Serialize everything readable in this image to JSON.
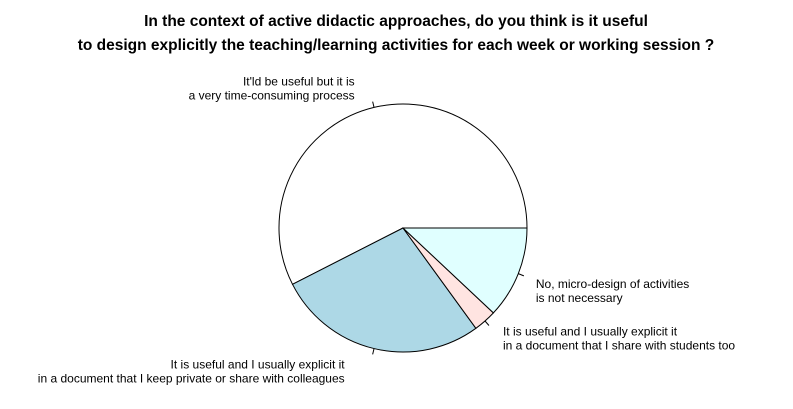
{
  "chart_data": {
    "type": "pie",
    "title": [
      "In the context of active didactic approaches, do you think is it useful",
      "to design explicitly the teaching/learning activities for each week or working session ?"
    ],
    "start_angle_deg": 0,
    "direction": "counterclockwise",
    "slices": [
      {
        "label": [
          "It'ld be useful but it is",
          "a very time-consuming process"
        ],
        "value": 57.5,
        "color": "#ffffff"
      },
      {
        "label": [
          "It is useful and I usually explicit it",
          "in a document that I keep private or share with colleagues"
        ],
        "value": 27.5,
        "color": "#add8e6"
      },
      {
        "label": [
          "It is useful and I usually explicit it",
          "in a document that I share with students too"
        ],
        "value": 3.0,
        "color": "#ffe4e1"
      },
      {
        "label": [
          "No, micro-design of activities",
          "is not necessary"
        ],
        "value": 12.0,
        "color": "#e0ffff"
      }
    ]
  }
}
